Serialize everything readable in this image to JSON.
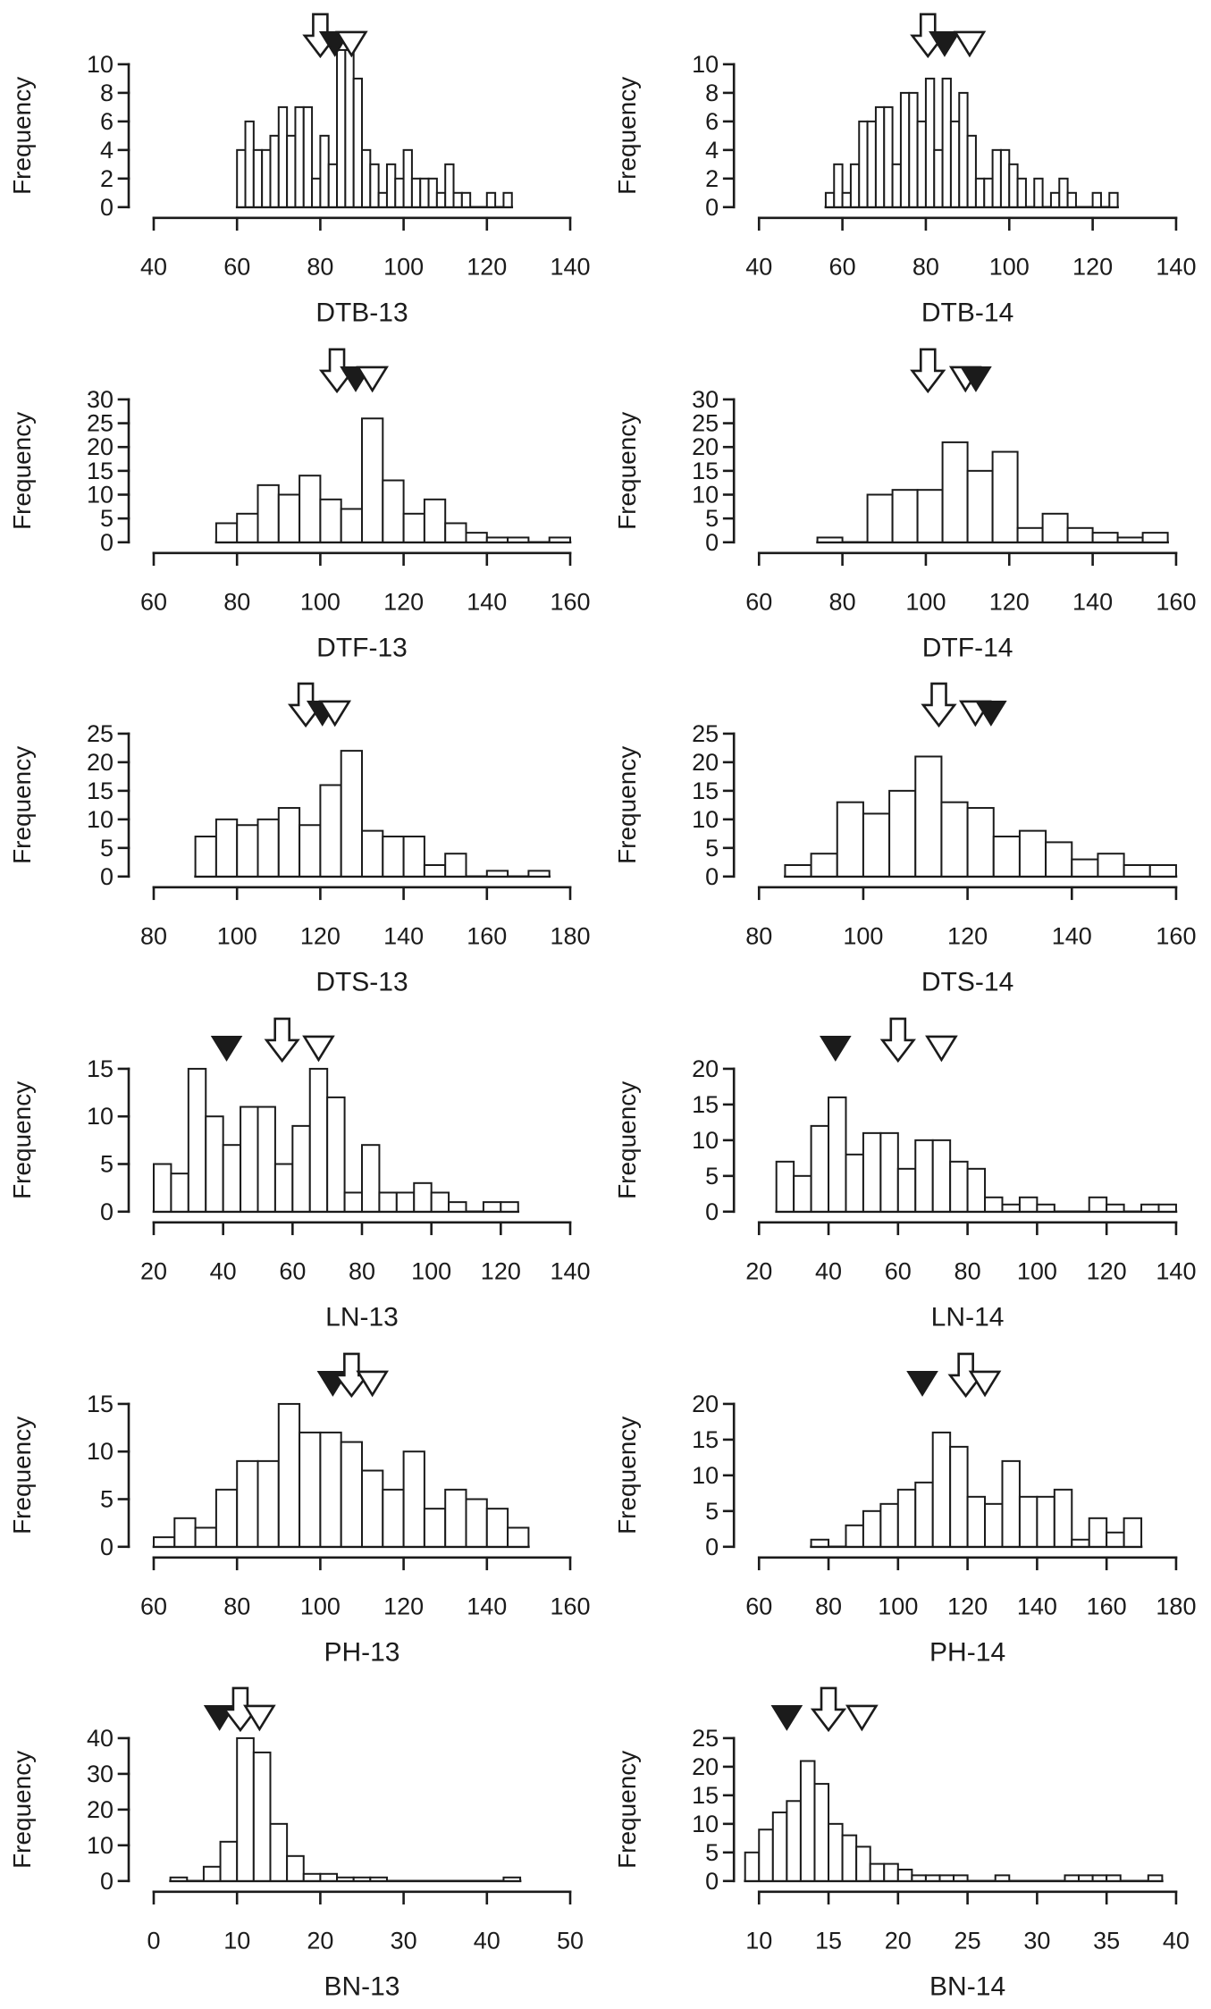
{
  "figure": {
    "background": "#ffffff",
    "ink_color": "#1b1b1b",
    "ylabel": "Frequency",
    "marker_glyphs": {
      "open_arrow": "open-down-block-arrow",
      "filled_triangle": "filled-down-triangle",
      "open_triangle": "open-down-triangle"
    }
  },
  "chart_data": [
    {
      "type": "bar",
      "title": "DTB-13",
      "xlabel": "DTB-13",
      "ylabel": "Frequency",
      "xlim": [
        40,
        140
      ],
      "xticks": [
        40,
        60,
        80,
        100,
        120,
        140
      ],
      "ylim": [
        0,
        10
      ],
      "yticks": [
        0,
        2,
        4,
        6,
        8,
        10
      ],
      "ymax": 10,
      "bin_start": 60,
      "bin_width": 2,
      "values": [
        4,
        6,
        4,
        4,
        5,
        7,
        5,
        7,
        7,
        2,
        5,
        3,
        11,
        11,
        9,
        4,
        3,
        1,
        3,
        2,
        4,
        2,
        2,
        2,
        1,
        3,
        1,
        1,
        0,
        0,
        1,
        0,
        1
      ],
      "markers": [
        {
          "type": "open_arrow",
          "x": 80
        },
        {
          "type": "filled_triangle",
          "x": 83.5
        },
        {
          "type": "open_triangle",
          "x": 87.5
        }
      ]
    },
    {
      "type": "bar",
      "title": "DTB-14",
      "xlabel": "DTB-14",
      "ylabel": "Frequency",
      "xlim": [
        40,
        140
      ],
      "xticks": [
        40,
        60,
        80,
        100,
        120,
        140
      ],
      "ylim": [
        0,
        10
      ],
      "yticks": [
        0,
        2,
        4,
        6,
        8,
        10
      ],
      "ymax": 10,
      "bin_start": 56,
      "bin_width": 2,
      "values": [
        1,
        3,
        1,
        3,
        6,
        6,
        7,
        7,
        3,
        8,
        8,
        6,
        9,
        4,
        9,
        6,
        8,
        5,
        2,
        2,
        4,
        4,
        3,
        2,
        0,
        2,
        0,
        1,
        2,
        1,
        0,
        0,
        1,
        0,
        1
      ],
      "markers": [
        {
          "type": "open_arrow",
          "x": 80.5
        },
        {
          "type": "filled_triangle",
          "x": 84.5
        },
        {
          "type": "open_triangle",
          "x": 90.5
        }
      ]
    },
    {
      "type": "bar",
      "title": "DTF-13",
      "xlabel": "DTF-13",
      "ylabel": "Frequency",
      "xlim": [
        60,
        160
      ],
      "xticks": [
        60,
        80,
        100,
        120,
        140,
        160
      ],
      "ylim": [
        0,
        30
      ],
      "yticks": [
        0,
        5,
        10,
        15,
        20,
        25,
        30
      ],
      "ymax": 30,
      "bin_start": 75,
      "bin_width": 5,
      "values": [
        4,
        6,
        12,
        10,
        14,
        9,
        7,
        26,
        13,
        6,
        9,
        4,
        2,
        1,
        1,
        0,
        1
      ],
      "markers": [
        {
          "type": "open_arrow",
          "x": 104
        },
        {
          "type": "filled_triangle",
          "x": 108.5
        },
        {
          "type": "open_triangle",
          "x": 112.5
        }
      ]
    },
    {
      "type": "bar",
      "title": "DTF-14",
      "xlabel": "DTF-14",
      "ylabel": "Frequency",
      "xlim": [
        60,
        160
      ],
      "xticks": [
        60,
        80,
        100,
        120,
        140,
        160
      ],
      "ylim": [
        0,
        30
      ],
      "yticks": [
        0,
        5,
        10,
        15,
        20,
        25,
        30
      ],
      "ymax": 30,
      "bin_start": 74,
      "bin_width": 6,
      "values": [
        1,
        0,
        10,
        11,
        11,
        21,
        15,
        19,
        3,
        6,
        3,
        2,
        1,
        2
      ],
      "markers": [
        {
          "type": "open_arrow",
          "x": 100.5
        },
        {
          "type": "open_triangle",
          "x": 109.5
        },
        {
          "type": "filled_triangle",
          "x": 112
        }
      ]
    },
    {
      "type": "bar",
      "title": "DTS-13",
      "xlabel": "DTS-13",
      "ylabel": "Frequency",
      "xlim": [
        80,
        180
      ],
      "xticks": [
        80,
        100,
        120,
        140,
        160,
        180
      ],
      "ylim": [
        0,
        25
      ],
      "yticks": [
        0,
        5,
        10,
        15,
        20,
        25
      ],
      "ymax": 25,
      "bin_start": 90,
      "bin_width": 5,
      "values": [
        7,
        10,
        9,
        10,
        12,
        9,
        16,
        22,
        8,
        7,
        7,
        2,
        4,
        0,
        1,
        0,
        1
      ],
      "markers": [
        {
          "type": "open_arrow",
          "x": 116.5
        },
        {
          "type": "filled_triangle",
          "x": 120.5
        },
        {
          "type": "open_triangle",
          "x": 123.5
        }
      ]
    },
    {
      "type": "bar",
      "title": "DTS-14",
      "xlabel": "DTS-14",
      "ylabel": "Frequency",
      "xlim": [
        80,
        160
      ],
      "xticks": [
        80,
        100,
        120,
        140,
        160
      ],
      "ylim": [
        0,
        25
      ],
      "yticks": [
        0,
        5,
        10,
        15,
        20,
        25
      ],
      "ymax": 25,
      "bin_start": 85,
      "bin_width": 5,
      "values": [
        2,
        4,
        13,
        11,
        15,
        21,
        13,
        12,
        7,
        8,
        6,
        3,
        4,
        2,
        2
      ],
      "markers": [
        {
          "type": "open_arrow",
          "x": 114.5
        },
        {
          "type": "open_triangle",
          "x": 121.5
        },
        {
          "type": "filled_triangle",
          "x": 124.5
        }
      ]
    },
    {
      "type": "bar",
      "title": "LN-13",
      "xlabel": "LN-13",
      "ylabel": "Frequency",
      "xlim": [
        20,
        140
      ],
      "xticks": [
        20,
        40,
        60,
        80,
        100,
        120,
        140
      ],
      "ylim": [
        0,
        15
      ],
      "yticks": [
        0,
        5,
        10,
        15
      ],
      "ymax": 15,
      "bin_start": 20,
      "bin_width": 5,
      "values": [
        5,
        4,
        15,
        10,
        7,
        11,
        11,
        5,
        9,
        15,
        12,
        2,
        7,
        2,
        2,
        3,
        2,
        1,
        0,
        1,
        1
      ],
      "markers": [
        {
          "type": "filled_triangle",
          "x": 41
        },
        {
          "type": "open_arrow",
          "x": 57
        },
        {
          "type": "open_triangle",
          "x": 67.5
        }
      ]
    },
    {
      "type": "bar",
      "title": "LN-14",
      "xlabel": "LN-14",
      "ylabel": "Frequency",
      "xlim": [
        20,
        140
      ],
      "xticks": [
        20,
        40,
        60,
        80,
        100,
        120,
        140
      ],
      "ylim": [
        0,
        20
      ],
      "yticks": [
        0,
        5,
        10,
        15,
        20
      ],
      "ymax": 20,
      "bin_start": 25,
      "bin_width": 5,
      "values": [
        7,
        5,
        12,
        16,
        8,
        11,
        11,
        6,
        10,
        10,
        7,
        6,
        2,
        1,
        2,
        1,
        0,
        0,
        2,
        1,
        0,
        1,
        1
      ],
      "markers": [
        {
          "type": "filled_triangle",
          "x": 42
        },
        {
          "type": "open_arrow",
          "x": 60
        },
        {
          "type": "open_triangle",
          "x": 72.5
        }
      ]
    },
    {
      "type": "bar",
      "title": "PH-13",
      "xlabel": "PH-13",
      "ylabel": "Frequency",
      "xlim": [
        60,
        160
      ],
      "xticks": [
        60,
        80,
        100,
        120,
        140,
        160
      ],
      "ylim": [
        0,
        15
      ],
      "yticks": [
        0,
        5,
        10,
        15
      ],
      "ymax": 15,
      "bin_start": 60,
      "bin_width": 5,
      "values": [
        1,
        3,
        2,
        6,
        9,
        9,
        15,
        12,
        12,
        11,
        8,
        6,
        10,
        4,
        6,
        5,
        4,
        2
      ],
      "markers": [
        {
          "type": "filled_triangle",
          "x": 103
        },
        {
          "type": "open_arrow",
          "x": 107.5
        },
        {
          "type": "open_triangle",
          "x": 112.5
        }
      ]
    },
    {
      "type": "bar",
      "title": "PH-14",
      "xlabel": "PH-14",
      "ylabel": "Frequency",
      "xlim": [
        60,
        180
      ],
      "xticks": [
        60,
        80,
        100,
        120,
        140,
        160,
        180
      ],
      "ylim": [
        0,
        20
      ],
      "yticks": [
        0,
        5,
        10,
        15,
        20
      ],
      "ymax": 20,
      "bin_start": 75,
      "bin_width": 5,
      "values": [
        1,
        0,
        3,
        5,
        6,
        8,
        9,
        16,
        14,
        7,
        6,
        12,
        7,
        7,
        8,
        1,
        4,
        2,
        4
      ],
      "markers": [
        {
          "type": "filled_triangle",
          "x": 107
        },
        {
          "type": "open_arrow",
          "x": 119.5
        },
        {
          "type": "open_triangle",
          "x": 125
        }
      ]
    },
    {
      "type": "bar",
      "title": "BN-13",
      "xlabel": "BN-13",
      "ylabel": "Frequency",
      "xlim": [
        0,
        50
      ],
      "xticks": [
        0,
        10,
        20,
        30,
        40,
        50
      ],
      "ylim": [
        0,
        40
      ],
      "yticks": [
        0,
        10,
        20,
        30,
        40
      ],
      "ymax": 40,
      "bin_start": 2,
      "bin_width": 2,
      "values": [
        1,
        0,
        4,
        11,
        40,
        36,
        16,
        7,
        2,
        2,
        1,
        1,
        1,
        0,
        0,
        0,
        0,
        0,
        0,
        0,
        1
      ],
      "markers": [
        {
          "type": "filled_triangle",
          "x": 7.9
        },
        {
          "type": "open_arrow",
          "x": 10.4
        },
        {
          "type": "open_triangle",
          "x": 12.7
        }
      ]
    },
    {
      "type": "bar",
      "title": "BN-14",
      "xlabel": "BN-14",
      "ylabel": "Frequency",
      "xlim": [
        10,
        40
      ],
      "xticks": [
        10,
        15,
        20,
        25,
        30,
        35,
        40
      ],
      "ylim": [
        0,
        25
      ],
      "yticks": [
        0,
        5,
        10,
        15,
        20,
        25
      ],
      "ymax": 25,
      "bin_start": 9,
      "bin_width": 1,
      "values": [
        5,
        9,
        12,
        14,
        21,
        17,
        10,
        8,
        6,
        3,
        3,
        2,
        1,
        1,
        1,
        1,
        0,
        0,
        1,
        0,
        0,
        0,
        0,
        1,
        1,
        1,
        1,
        0,
        0,
        1
      ],
      "markers": [
        {
          "type": "filled_triangle",
          "x": 12
        },
        {
          "type": "open_arrow",
          "x": 15
        },
        {
          "type": "open_triangle",
          "x": 17.4
        }
      ]
    }
  ]
}
